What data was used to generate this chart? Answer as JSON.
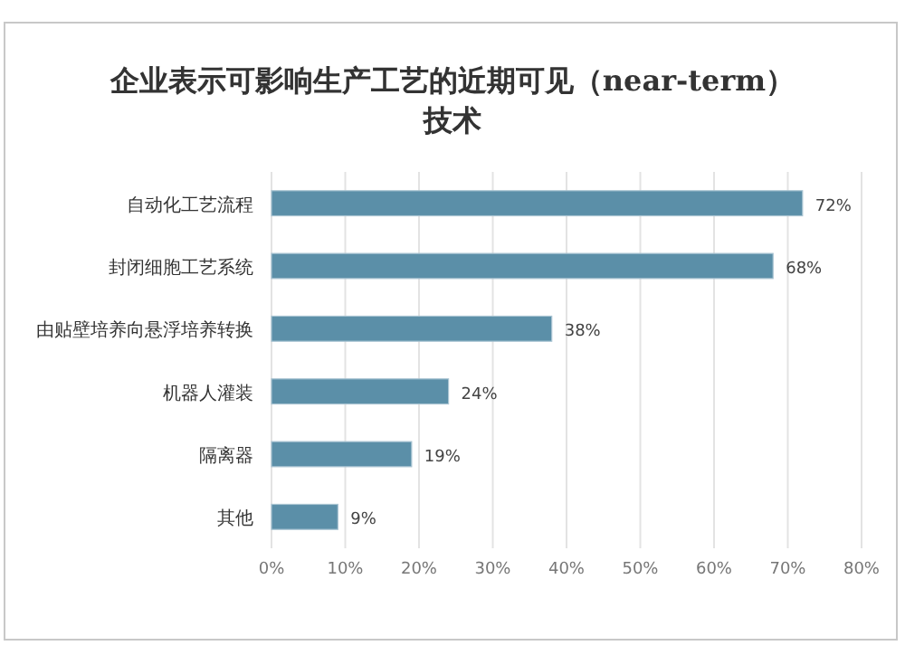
{
  "chart_data": {
    "type": "bar",
    "orientation": "horizontal",
    "title": "企业表示可影响生产工艺的近期可见（near-term）技术",
    "categories": [
      "自动化工艺流程",
      "封闭细胞工艺系统",
      "由贴壁培养向悬浮培养转换",
      "机器人灌装",
      "隔离器",
      "其他"
    ],
    "values": [
      72,
      68,
      38,
      24,
      19,
      9
    ],
    "value_labels": [
      "72%",
      "68%",
      "38%",
      "24%",
      "19%",
      "9%"
    ],
    "color": "#5b8fa8",
    "xlim": [
      0,
      80
    ],
    "xticks": [
      {
        "value": 0,
        "label": "0%"
      },
      {
        "value": 10,
        "label": "10%"
      },
      {
        "value": 20,
        "label": "20%"
      },
      {
        "value": 30,
        "label": "30%"
      },
      {
        "value": 40,
        "label": "40%"
      },
      {
        "value": 50,
        "label": "50%"
      },
      {
        "value": 60,
        "label": "60%"
      },
      {
        "value": 70,
        "label": "70%"
      },
      {
        "value": 80,
        "label": "80%"
      }
    ],
    "grid": "x"
  }
}
